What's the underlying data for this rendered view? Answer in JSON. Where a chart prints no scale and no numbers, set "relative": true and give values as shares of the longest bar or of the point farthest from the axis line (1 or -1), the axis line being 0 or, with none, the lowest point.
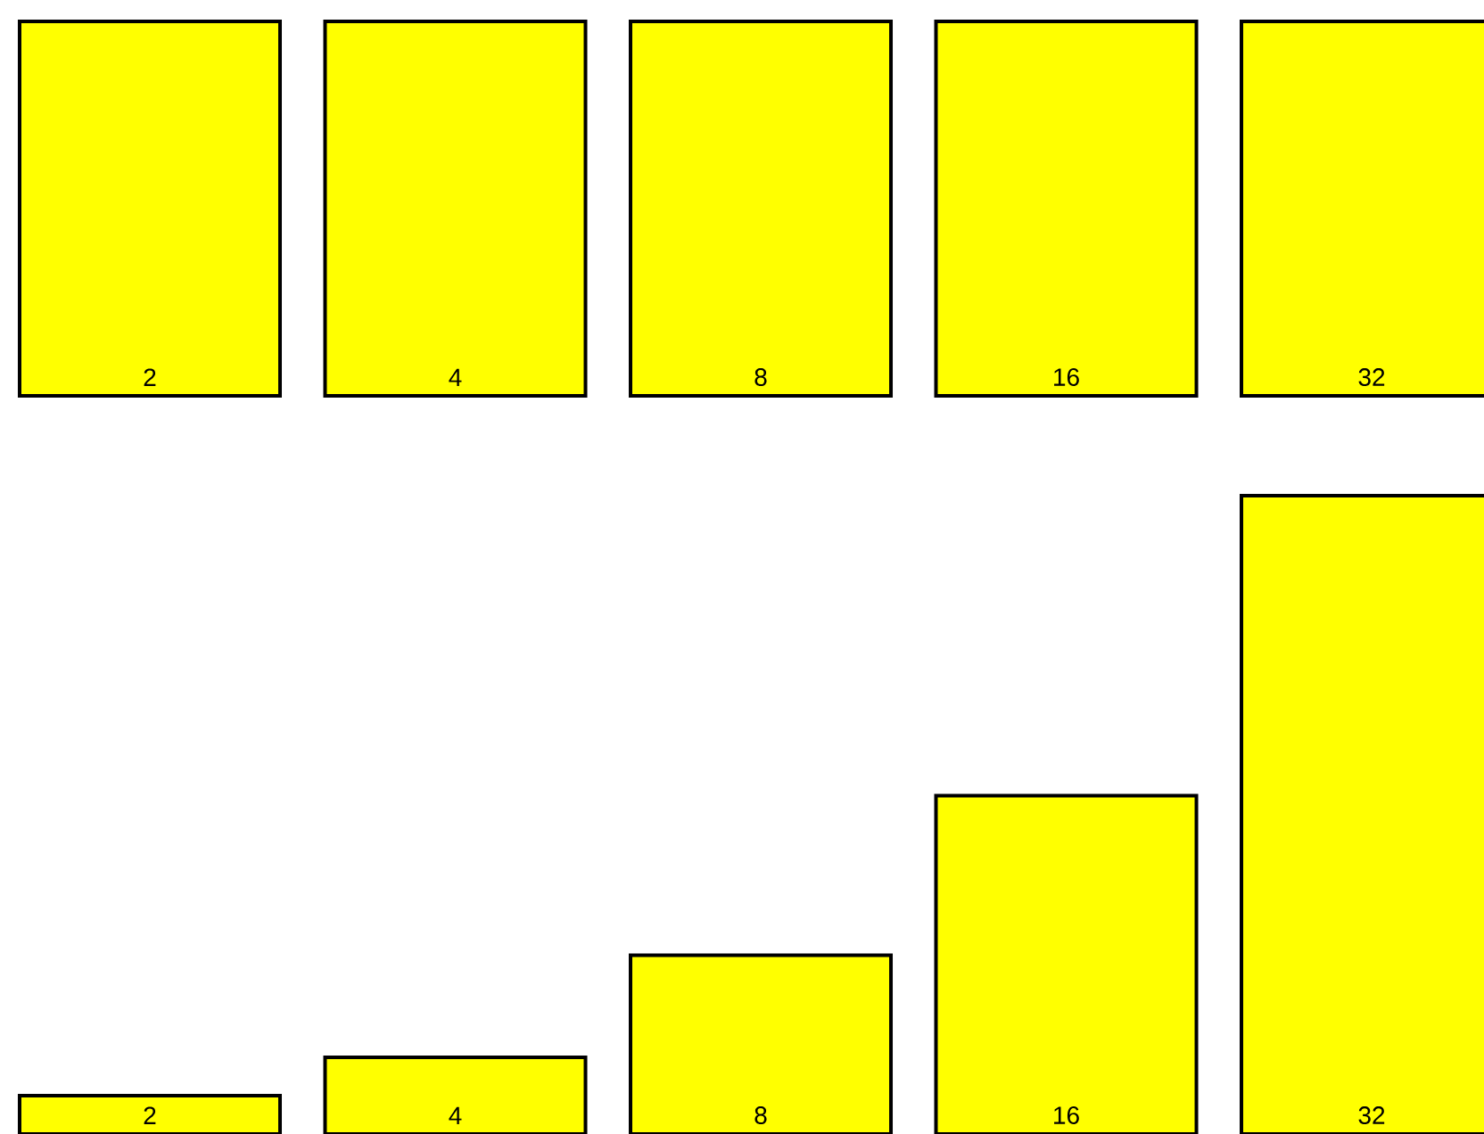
{
  "chart_data": [
    {
      "type": "bar",
      "categories": [
        "2",
        "4",
        "8",
        "16",
        "32"
      ],
      "values": [
        1,
        1,
        1,
        1,
        1
      ],
      "color": "#ffff00",
      "relative": true
    },
    {
      "type": "bar",
      "categories": [
        "2",
        "4",
        "8",
        "16",
        "32"
      ],
      "values": [
        0.06,
        0.12,
        0.28,
        0.53,
        1
      ],
      "color": "#ffff00",
      "relative": true
    }
  ]
}
